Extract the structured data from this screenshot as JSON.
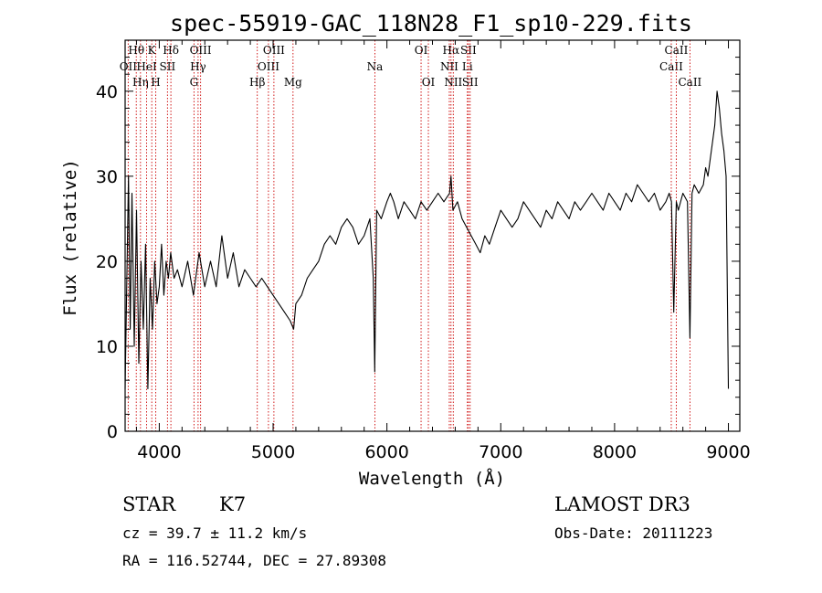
{
  "chart_data": {
    "type": "line",
    "title": "spec-55919-GAC_118N28_F1_sp10-229.fits",
    "xlabel": "Wavelength (Å)",
    "ylabel": "Flux (relative)",
    "xlim": [
      3700,
      9100
    ],
    "ylim": [
      0,
      46
    ],
    "xticks": [
      4000,
      5000,
      6000,
      7000,
      8000,
      9000
    ],
    "yticks": [
      0,
      10,
      20,
      30,
      40
    ],
    "series": [
      {
        "name": "flux",
        "x": [
          3700,
          3715,
          3730,
          3745,
          3760,
          3780,
          3800,
          3820,
          3840,
          3860,
          3880,
          3900,
          3920,
          3940,
          3960,
          3980,
          4000,
          4020,
          4040,
          4060,
          4080,
          4100,
          4130,
          4160,
          4200,
          4250,
          4300,
          4350,
          4400,
          4450,
          4500,
          4550,
          4600,
          4650,
          4700,
          4750,
          4800,
          4850,
          4900,
          4950,
          5000,
          5050,
          5100,
          5150,
          5180,
          5200,
          5250,
          5300,
          5350,
          5400,
          5450,
          5500,
          5550,
          5600,
          5650,
          5700,
          5750,
          5800,
          5850,
          5880,
          5893,
          5910,
          5950,
          6000,
          6030,
          6060,
          6100,
          6150,
          6200,
          6250,
          6300,
          6350,
          6400,
          6450,
          6500,
          6550,
          6563,
          6580,
          6620,
          6660,
          6700,
          6740,
          6780,
          6820,
          6860,
          6900,
          6950,
          7000,
          7050,
          7100,
          7150,
          7200,
          7250,
          7300,
          7350,
          7400,
          7450,
          7500,
          7550,
          7600,
          7650,
          7700,
          7750,
          7800,
          7850,
          7900,
          7950,
          8000,
          8050,
          8100,
          8150,
          8200,
          8250,
          8300,
          8350,
          8400,
          8450,
          8480,
          8500,
          8520,
          8542,
          8560,
          8600,
          8640,
          8662,
          8680,
          8700,
          8740,
          8780,
          8800,
          8820,
          8840,
          8860,
          8880,
          8900,
          8920,
          8940,
          8960,
          8980,
          9000
        ],
        "values": [
          5,
          18,
          30,
          12,
          28,
          10,
          26,
          8,
          20,
          12,
          22,
          5,
          18,
          12,
          20,
          15,
          17,
          22,
          16,
          20,
          18,
          21,
          18,
          19,
          17,
          20,
          16,
          21,
          17,
          20,
          17,
          23,
          18,
          21,
          17,
          19,
          18,
          17,
          18,
          17,
          16,
          15,
          14,
          13,
          12,
          15,
          16,
          18,
          19,
          20,
          22,
          23,
          22,
          24,
          25,
          24,
          22,
          23,
          25,
          18,
          7,
          26,
          25,
          27,
          28,
          27,
          25,
          27,
          26,
          25,
          27,
          26,
          27,
          28,
          27,
          28,
          30,
          26,
          27,
          25,
          24,
          23,
          22,
          21,
          23,
          22,
          24,
          26,
          25,
          24,
          25,
          27,
          26,
          25,
          24,
          26,
          25,
          27,
          26,
          25,
          27,
          26,
          27,
          28,
          27,
          26,
          28,
          27,
          26,
          28,
          27,
          29,
          28,
          27,
          28,
          26,
          27,
          28,
          27,
          14,
          27,
          26,
          28,
          27,
          11,
          28,
          29,
          28,
          29,
          31,
          30,
          32,
          34,
          36,
          40,
          38,
          35,
          33,
          30,
          5
        ]
      }
    ],
    "lines": [
      {
        "label": "OII",
        "wl": 3727,
        "row": 1
      },
      {
        "label": "Hθ",
        "wl": 3798,
        "row": 0
      },
      {
        "label": "Hη",
        "wl": 3835,
        "row": 2
      },
      {
        "label": "HeI",
        "wl": 3889,
        "row": 1
      },
      {
        "label": "K",
        "wl": 3934,
        "row": 0
      },
      {
        "label": "H",
        "wl": 3969,
        "row": 2
      },
      {
        "label": "SII",
        "wl": 4072,
        "row": 1
      },
      {
        "label": "Hδ",
        "wl": 4102,
        "row": 0
      },
      {
        "label": "G",
        "wl": 4305,
        "row": 2
      },
      {
        "label": "Hγ",
        "wl": 4341,
        "row": 1
      },
      {
        "label": "OIII",
        "wl": 4363,
        "row": 0
      },
      {
        "label": "Hβ",
        "wl": 4861,
        "row": 2
      },
      {
        "label": "OIII",
        "wl": 4959,
        "row": 1
      },
      {
        "label": "OIII",
        "wl": 5007,
        "row": 0
      },
      {
        "label": "Mg",
        "wl": 5175,
        "row": 2
      },
      {
        "label": "Na",
        "wl": 5894,
        "row": 1
      },
      {
        "label": "OI",
        "wl": 6300,
        "row": 0
      },
      {
        "label": "OI",
        "wl": 6364,
        "row": 2
      },
      {
        "label": "NII",
        "wl": 6548,
        "row": 1
      },
      {
        "label": "Hα",
        "wl": 6563,
        "row": 0
      },
      {
        "label": "NII",
        "wl": 6583,
        "row": 2
      },
      {
        "label": "Li",
        "wl": 6707,
        "row": 1
      },
      {
        "label": "SII",
        "wl": 6716,
        "row": 0
      },
      {
        "label": "SII",
        "wl": 6731,
        "row": 2
      },
      {
        "label": "CaII",
        "wl": 8498,
        "row": 1
      },
      {
        "label": "CaII",
        "wl": 8542,
        "row": 0
      },
      {
        "label": "CaII",
        "wl": 8662,
        "row": 2
      }
    ]
  },
  "info": {
    "class": "STAR",
    "subclass": "K7",
    "cz": "cz = 39.7 ± 11.2 km/s",
    "radec": "RA = 116.52744, DEC =  27.89308",
    "survey": "LAMOST DR3",
    "obsdate": "Obs-Date: 20111223"
  },
  "colors": {
    "line_marker": "#cc0000",
    "spectrum": "#000000",
    "axis": "#000000"
  }
}
